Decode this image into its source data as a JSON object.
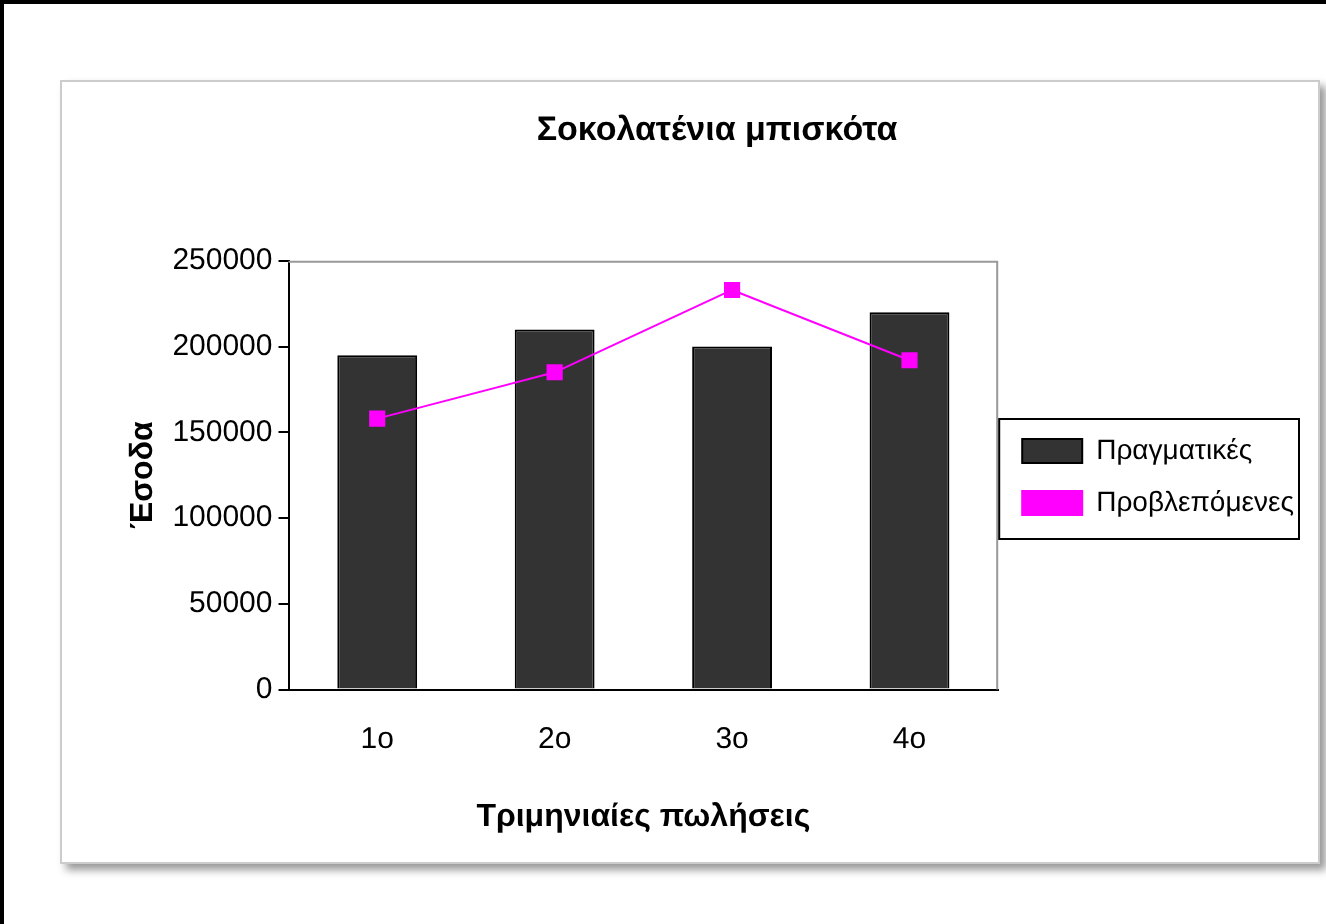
{
  "chart_data": {
    "type": "bar",
    "title": "Σοκολατένια μπισκότα",
    "xlabel": "Τριμηνιαίες πωλήσεις",
    "ylabel": "Έσοδα",
    "categories": [
      "1ο",
      "2ο",
      "3ο",
      "4ο"
    ],
    "series": [
      {
        "name": "Πραγματικές",
        "color": "#333333",
        "values": [
          195000,
          210000,
          200000,
          220000
        ]
      },
      {
        "name": "Προβλεπόμενες",
        "type": "line",
        "color": "#ff00ff",
        "marker": "square",
        "values": [
          158000,
          185000,
          233000,
          192000
        ]
      }
    ],
    "ylim": [
      0,
      250000
    ],
    "yticks": [
      0,
      50000,
      100000,
      150000,
      200000,
      250000
    ],
    "grid": false,
    "legend": "right"
  }
}
